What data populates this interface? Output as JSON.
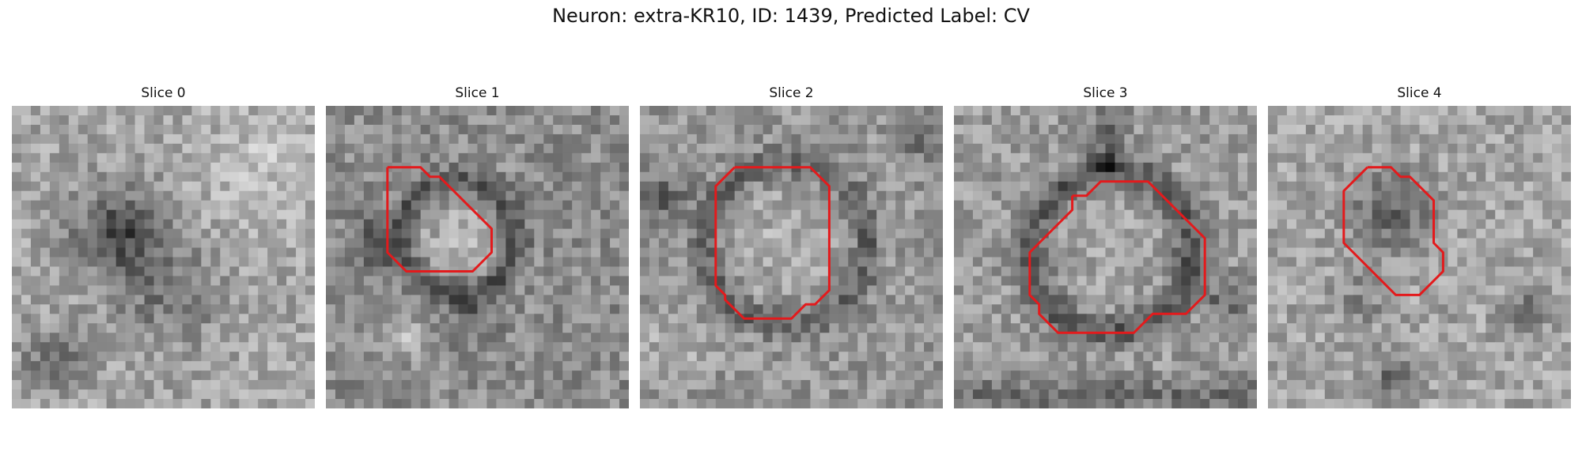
{
  "figure": {
    "title": "Neuron: extra-KR10, ID: 1439, Predicted Label: CV"
  },
  "outline_color": "#e31a1c",
  "panels": [
    {
      "title": "Slice 0",
      "has_contour": false
    },
    {
      "title": "Slice 1",
      "has_contour": true
    },
    {
      "title": "Slice 2",
      "has_contour": true
    },
    {
      "title": "Slice 3",
      "has_contour": true
    },
    {
      "title": "Slice 4",
      "has_contour": true
    }
  ]
}
